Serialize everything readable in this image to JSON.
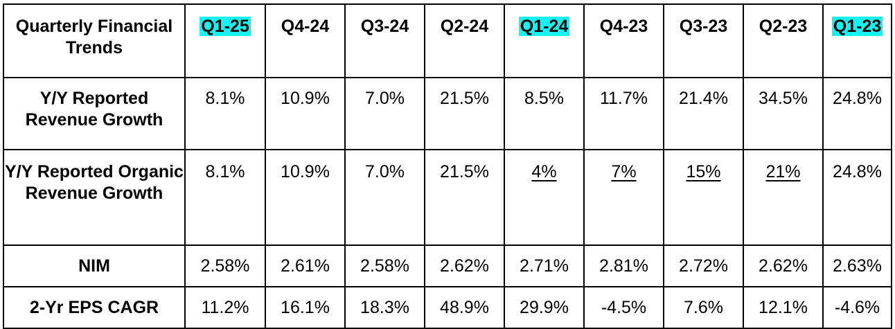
{
  "table": {
    "corner_label": "Quarterly Financial Trends",
    "columns": [
      {
        "label": "Q1-25",
        "highlight": true
      },
      {
        "label": "Q4-24",
        "highlight": false
      },
      {
        "label": "Q3-24",
        "highlight": false
      },
      {
        "label": "Q2-24",
        "highlight": false
      },
      {
        "label": "Q1-24",
        "highlight": true
      },
      {
        "label": "Q4-23",
        "highlight": false
      },
      {
        "label": "Q3-23",
        "highlight": false
      },
      {
        "label": "Q2-23",
        "highlight": false
      },
      {
        "label": "Q1-23",
        "highlight": true
      }
    ],
    "highlight_color": "#14f2f2",
    "rows": [
      {
        "label": "Y/Y Reported Revenue Growth",
        "values": [
          "8.1%",
          "10.9%",
          "7.0%",
          "21.5%",
          "8.5%",
          "11.7%",
          "21.4%",
          "34.5%",
          "24.8%"
        ],
        "underlined": [
          false,
          false,
          false,
          false,
          false,
          false,
          false,
          false,
          false
        ]
      },
      {
        "label": "Y/Y Reported Organic Revenue Growth",
        "values": [
          "8.1%",
          "10.9%",
          "7.0%",
          "21.5%",
          "4%",
          "7%",
          "15%",
          "21%",
          "24.8%"
        ],
        "underlined": [
          false,
          false,
          false,
          false,
          true,
          true,
          true,
          true,
          false
        ]
      },
      {
        "label": "NIM",
        "values": [
          "2.58%",
          "2.61%",
          "2.58%",
          "2.62%",
          "2.71%",
          "2.81%",
          "2.72%",
          "2.62%",
          "2.63%"
        ],
        "underlined": [
          false,
          false,
          false,
          false,
          false,
          false,
          false,
          false,
          false
        ]
      },
      {
        "label": "2-Yr EPS CAGR",
        "values": [
          "11.2%",
          "16.1%",
          "18.3%",
          "48.9%",
          "29.9%",
          "-4.5%",
          "7.6%",
          "12.1%",
          "-4.6%"
        ],
        "underlined": [
          false,
          false,
          false,
          false,
          false,
          false,
          false,
          false,
          false
        ]
      }
    ]
  }
}
